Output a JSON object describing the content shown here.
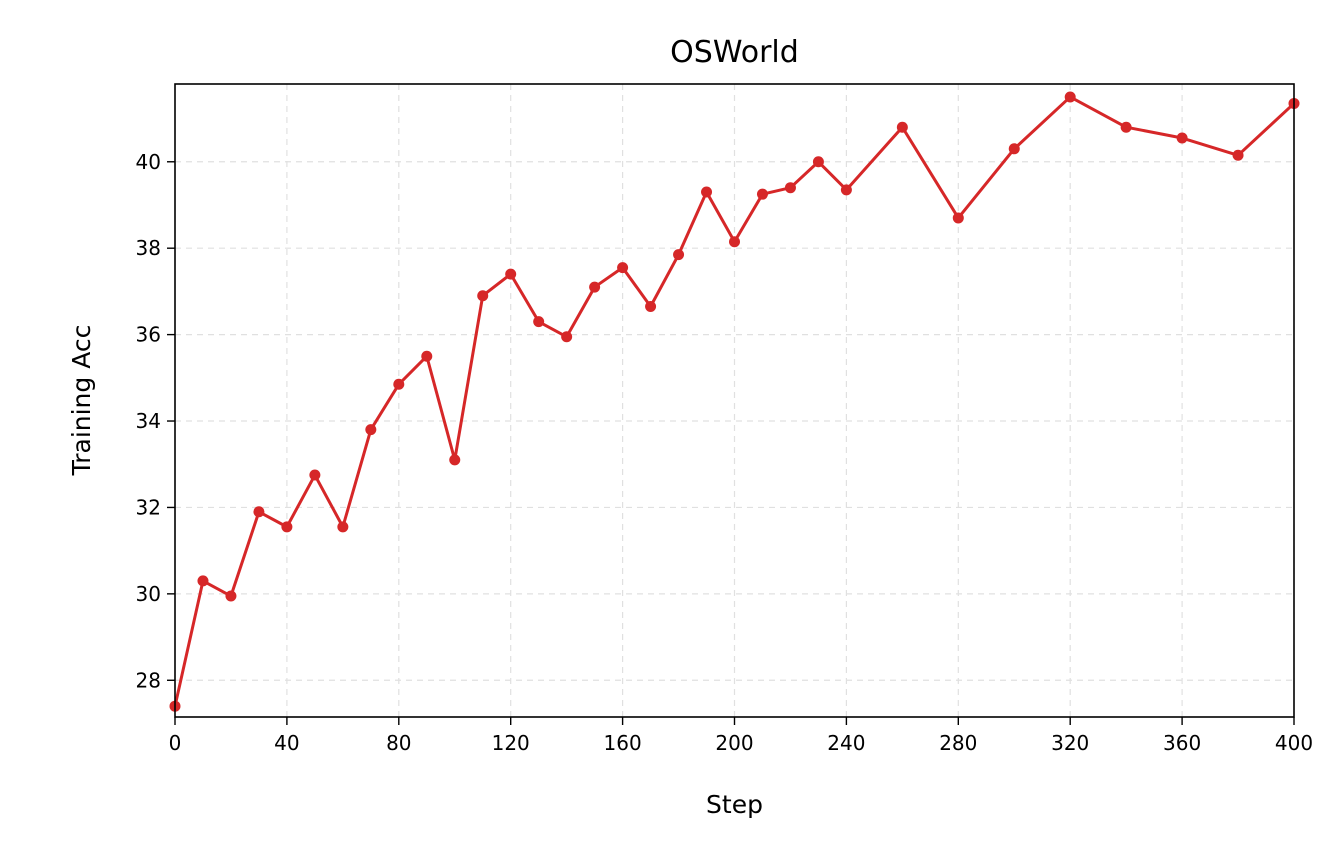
{
  "chart_data": {
    "type": "line",
    "title": "OSWorld",
    "xlabel": "Step",
    "ylabel": "Training Acc",
    "xlim": [
      0,
      400
    ],
    "ylim": [
      27.15,
      41.8
    ],
    "xticks": [
      0,
      40,
      80,
      120,
      160,
      200,
      240,
      280,
      320,
      360,
      400
    ],
    "yticks": [
      28,
      30,
      32,
      34,
      36,
      38,
      40
    ],
    "grid": true,
    "legend": "none",
    "series": [
      {
        "color": "#d62728",
        "marker": "circle",
        "x": [
          0,
          10,
          20,
          30,
          40,
          50,
          60,
          70,
          80,
          90,
          100,
          110,
          120,
          130,
          140,
          150,
          160,
          170,
          180,
          190,
          200,
          210,
          220,
          230,
          240,
          260,
          280,
          300,
          320,
          340,
          360,
          380,
          400
        ],
        "y": [
          27.4,
          30.3,
          29.95,
          31.9,
          31.55,
          32.75,
          31.55,
          33.8,
          34.85,
          35.5,
          33.1,
          36.9,
          37.4,
          36.3,
          35.95,
          37.1,
          37.55,
          36.65,
          37.85,
          39.3,
          38.15,
          39.25,
          39.4,
          40.0,
          39.35,
          40.8,
          38.7,
          40.3,
          41.5,
          40.8,
          40.55,
          40.15,
          41.35
        ]
      }
    ]
  }
}
